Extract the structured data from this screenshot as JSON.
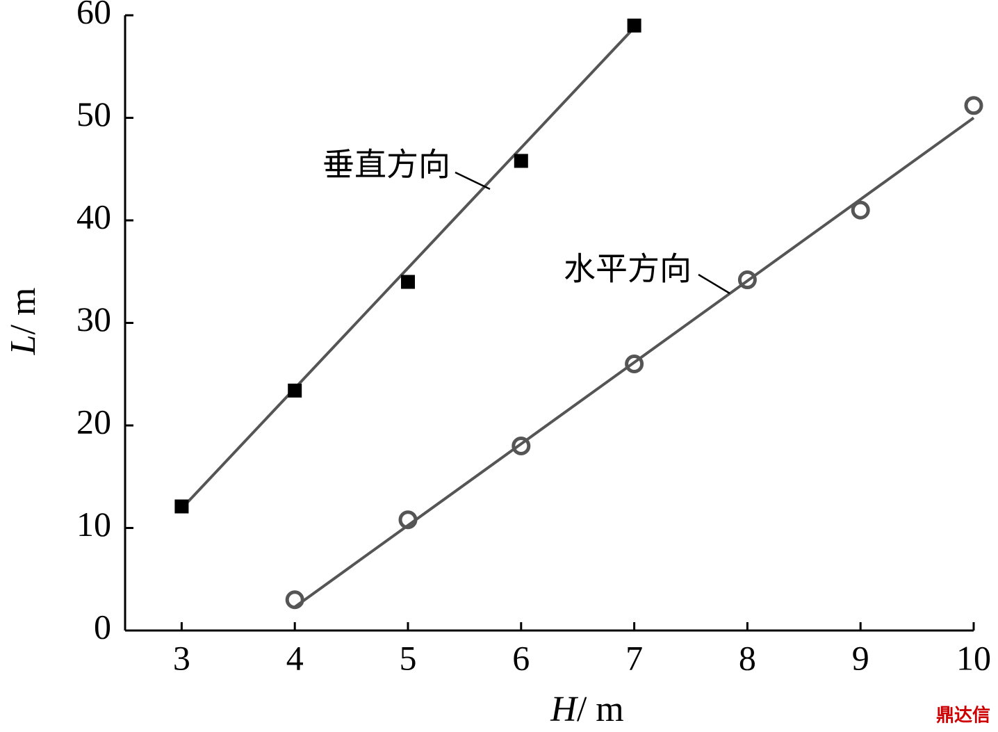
{
  "chart_data": {
    "type": "scatter",
    "x_label": {
      "symbol": "H",
      "unit": "/ m"
    },
    "y_label": {
      "symbol": "L",
      "unit": "/ m"
    },
    "xlim": [
      2.5,
      10
    ],
    "ylim": [
      0,
      60
    ],
    "xticks": [
      3,
      4,
      5,
      6,
      7,
      8,
      9,
      10
    ],
    "yticks": [
      0,
      10,
      20,
      30,
      40,
      50,
      60
    ],
    "series": [
      {
        "name": "垂直方向",
        "marker": "square",
        "color": "#000000",
        "line_color": "#555555",
        "x": [
          3,
          4,
          5,
          6,
          7
        ],
        "values": [
          12.1,
          23.4,
          34,
          45.8,
          59
        ],
        "fit": {
          "x": [
            3,
            7
          ],
          "values": [
            11.9,
            58.8
          ]
        }
      },
      {
        "name": "水平方向",
        "marker": "circle",
        "color": "#555555",
        "line_color": "#555555",
        "x": [
          4,
          5,
          6,
          7,
          8,
          9,
          10
        ],
        "values": [
          3,
          10.8,
          18,
          26,
          34.2,
          41,
          51.2
        ],
        "fit": {
          "x": [
            4,
            10
          ],
          "values": [
            2.3,
            50
          ]
        }
      }
    ],
    "watermark": "鼎达信"
  }
}
